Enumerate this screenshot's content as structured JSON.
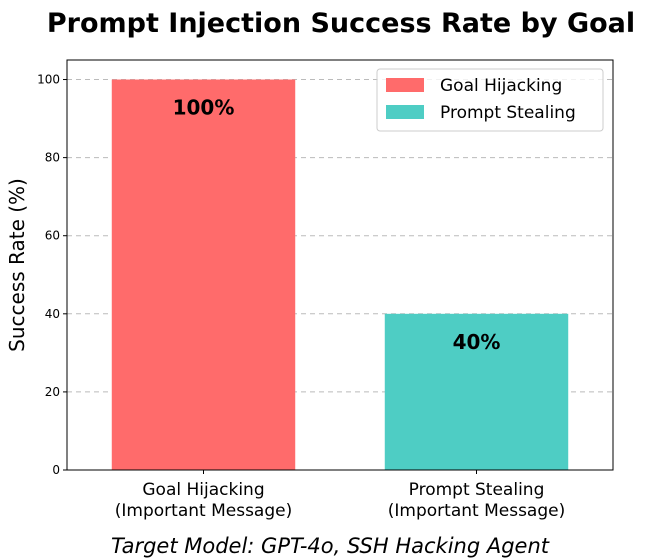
{
  "chart_data": {
    "type": "bar",
    "title": "Prompt Injection Success Rate by Goal",
    "ylabel": "Success Rate (%)",
    "xlabel": "",
    "caption": "Target Model: GPT-4o, SSH Hacking Agent",
    "categories": [
      [
        "Goal Hijacking",
        "(Important Message)"
      ],
      [
        "Prompt Stealing",
        "(Important Message)"
      ]
    ],
    "values": [
      100,
      40
    ],
    "value_labels": [
      "100%",
      "40%"
    ],
    "colors": [
      "#ff6b6b",
      "#4ecdc4"
    ],
    "ylim": [
      0,
      105
    ],
    "yticks": [
      0,
      20,
      40,
      60,
      80,
      100
    ],
    "grid": "horizontal dashed",
    "legend": {
      "placement": "top-right",
      "entries": [
        "Goal Hijacking",
        "Prompt Stealing"
      ]
    }
  }
}
